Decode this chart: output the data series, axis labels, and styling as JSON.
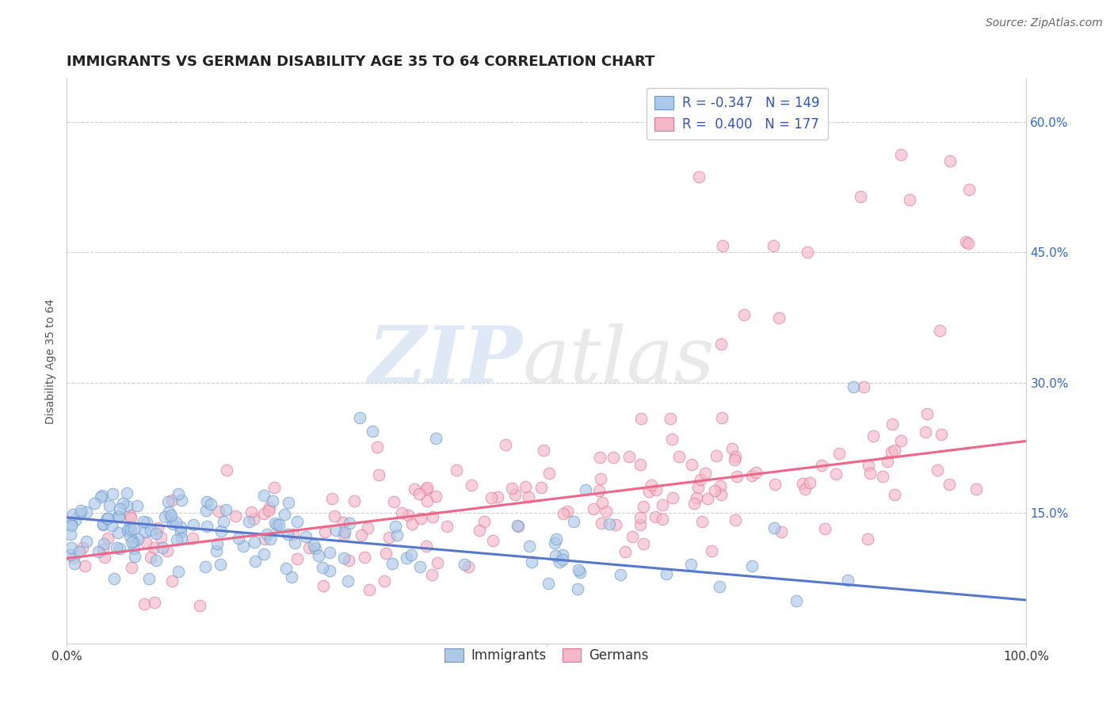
{
  "title": "IMMIGRANTS VS GERMAN DISABILITY AGE 35 TO 64 CORRELATION CHART",
  "source": "Source: ZipAtlas.com",
  "ylabel": "Disability Age 35 to 64",
  "xlim": [
    0.0,
    1.0
  ],
  "ylim": [
    0.0,
    0.65
  ],
  "xticks": [
    0.0,
    0.5,
    1.0
  ],
  "yticks": [
    0.0,
    0.15,
    0.3,
    0.45,
    0.6
  ],
  "xtick_labels_bottom": [
    "0.0%",
    "",
    "100.0%"
  ],
  "ytick_labels_right": [
    "",
    "15.0%",
    "30.0%",
    "45.0%",
    "60.0%"
  ],
  "immigrants_color": "#aec8e8",
  "immigrants_edge_color": "#6699cc",
  "germans_color": "#f4b8c8",
  "germans_edge_color": "#dd7799",
  "immigrants_R": -0.347,
  "immigrants_N": 149,
  "germans_R": 0.4,
  "germans_N": 177,
  "legend_text_color": "#3355bb",
  "background_color": "#ffffff",
  "grid_color": "#bbbbbb",
  "title_fontsize": 13,
  "axis_label_fontsize": 10,
  "tick_fontsize": 11,
  "legend_fontsize": 12,
  "source_fontsize": 10,
  "immigrants_line_color": "#5577cc",
  "germans_line_color": "#ee6688",
  "imm_intercept": 0.145,
  "imm_slope": -0.095,
  "ger_intercept": 0.098,
  "ger_slope": 0.135,
  "seed": 7
}
